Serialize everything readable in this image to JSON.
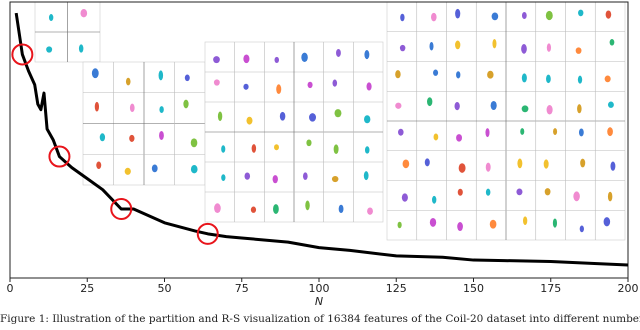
{
  "chart_data": {
    "type": "line",
    "xlabel": "N",
    "caption": "Figure 1: Illustration of the partition and R-S visualization of 16384 features of the Coil-20 dataset into different numbers (N) of",
    "x": [
      2,
      4,
      6,
      8,
      9,
      10,
      11,
      12,
      14,
      16,
      18,
      20,
      25,
      30,
      36,
      40,
      50,
      60,
      64,
      70,
      75,
      90,
      100,
      110,
      125,
      140,
      150,
      160,
      175,
      190,
      200
    ],
    "series": [
      {
        "color": "#000000",
        "values": [
          96,
          81,
          75,
          70,
          63,
          61,
          67,
          54,
          50,
          44,
          42,
          40,
          36,
          32,
          25,
          25,
          20,
          17,
          16,
          15,
          14.5,
          13,
          11,
          10,
          8,
          7.5,
          6.5,
          6.3,
          6,
          5.2,
          4.7
        ]
      }
    ],
    "highlights": [
      4,
      16,
      36,
      64
    ],
    "highlight_color": "#e8141b",
    "xlim": [
      0,
      200
    ],
    "ylim": [
      0,
      100
    ],
    "xticks": [
      0,
      25,
      50,
      75,
      100,
      125,
      150,
      175,
      200
    ]
  }
}
